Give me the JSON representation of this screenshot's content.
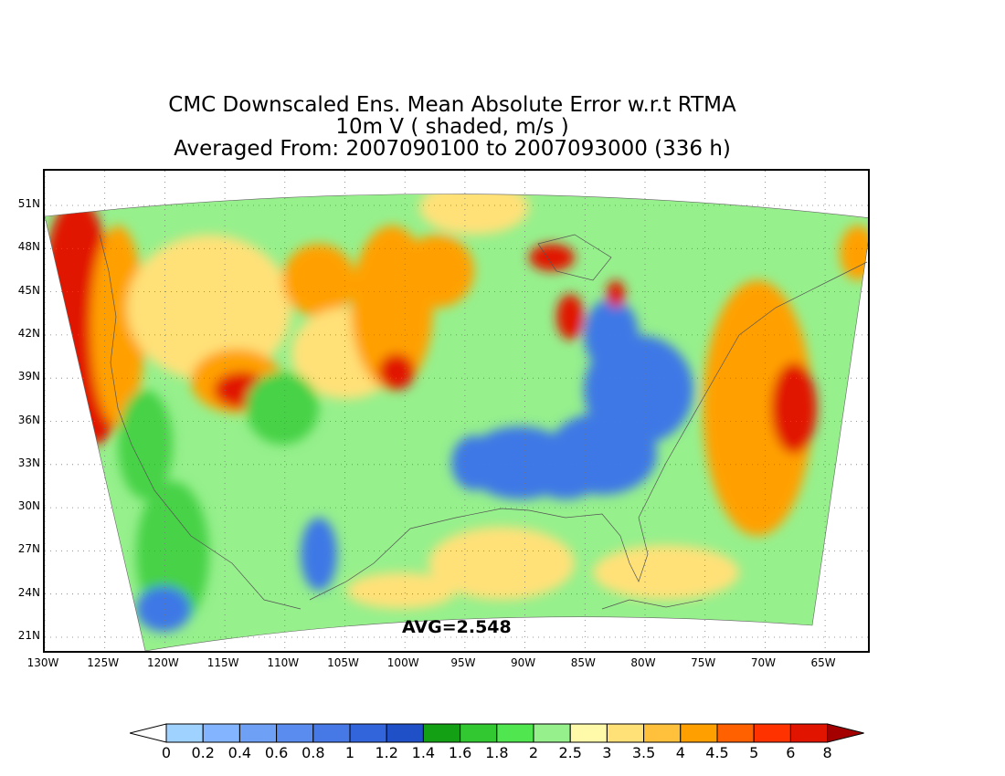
{
  "title": {
    "line1": "CMC Downscaled Ens. Mean Absolute Error w.r.t RTMA",
    "line2": "10m V ( shaded, m/s )",
    "line3": "Averaged From: 2007090100 to 2007093000 (336 h)"
  },
  "avg_label": "AVG=2.548",
  "lat_labels": [
    "51N",
    "48N",
    "45N",
    "42N",
    "39N",
    "36N",
    "33N",
    "30N",
    "27N",
    "24N",
    "21N"
  ],
  "lon_labels": [
    "130W",
    "125W",
    "120W",
    "115W",
    "110W",
    "105W",
    "100W",
    "95W",
    "90W",
    "85W",
    "80W",
    "75W",
    "70W",
    "65W"
  ],
  "colorbar": {
    "labels": [
      "0",
      "0.2",
      "0.4",
      "0.6",
      "0.8",
      "1",
      "1.2",
      "1.4",
      "1.6",
      "1.8",
      "2",
      "2.5",
      "3",
      "3.5",
      "4",
      "4.5",
      "5",
      "6",
      "8"
    ],
    "colors": [
      "#ffffff",
      "#a0d2ff",
      "#82b4ff",
      "#6ea0f5",
      "#5a8cf0",
      "#4678e6",
      "#3264dc",
      "#2050c8",
      "#14a014",
      "#32c832",
      "#50e650",
      "#96f08c",
      "#fffaaa",
      "#ffe178",
      "#ffc03c",
      "#ffa000",
      "#ff6000",
      "#ff3200",
      "#e11400",
      "#a50000"
    ]
  },
  "map_colors": {
    "blue": "#3c78e6",
    "green": "#46d246",
    "lightgreen": "#96f08c",
    "yellow": "#ffe178",
    "orange": "#ffa000",
    "red": "#e11400"
  }
}
